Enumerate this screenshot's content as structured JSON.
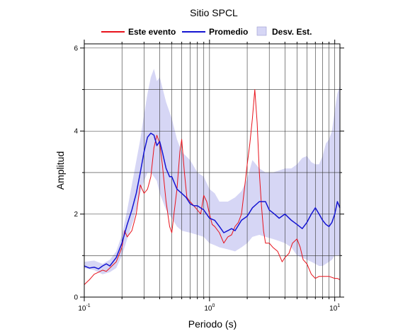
{
  "chart_data": {
    "type": "line",
    "title": "Sitio SPCL",
    "xlabel": "Periodo (s)",
    "ylabel": "Amplitud",
    "x_scale": "log",
    "xlim": [
      0.1,
      11
    ],
    "ylim": [
      0,
      6.1
    ],
    "grid": true,
    "legend_position": "top",
    "x_ticks": [
      {
        "value": 0.1,
        "base": "10",
        "exp": "-1"
      },
      {
        "value": 1,
        "base": "10",
        "exp": "0"
      },
      {
        "value": 10,
        "base": "10",
        "exp": "1"
      }
    ],
    "y_ticks": [
      "0",
      "2",
      "4",
      "6"
    ],
    "legend": [
      {
        "label": "Este evento",
        "color": "#e8121b",
        "kind": "line"
      },
      {
        "label": "Promedio",
        "color": "#1414d2",
        "kind": "line"
      },
      {
        "label": "Desv. Est.",
        "color": "#d6d6f5",
        "kind": "band"
      }
    ],
    "band": {
      "name": "Desv. Est.",
      "color": "#d6d6f5",
      "x": [
        0.1,
        0.12,
        0.14,
        0.16,
        0.18,
        0.2,
        0.22,
        0.25,
        0.28,
        0.3,
        0.32,
        0.34,
        0.36,
        0.38,
        0.4,
        0.45,
        0.5,
        0.55,
        0.6,
        0.7,
        0.8,
        0.9,
        1.0,
        1.1,
        1.2,
        1.4,
        1.6,
        1.8,
        2.0,
        2.2,
        2.5,
        2.8,
        3.2,
        3.6,
        4.0,
        4.5,
        5.0,
        5.5,
        6.0,
        6.5,
        7.0,
        7.5,
        8.0,
        8.5,
        9.0,
        9.5,
        10.0,
        10.5,
        11.0
      ],
      "upper": [
        0.85,
        0.88,
        0.8,
        0.9,
        1.1,
        1.5,
        2.1,
        3.0,
        3.8,
        4.4,
        4.9,
        5.3,
        5.5,
        5.2,
        5.3,
        4.7,
        4.3,
        3.8,
        3.5,
        3.3,
        3.0,
        2.9,
        2.6,
        2.5,
        2.3,
        2.3,
        2.4,
        2.55,
        2.85,
        3.3,
        3.1,
        3.0,
        3.0,
        3.05,
        3.1,
        3.1,
        3.2,
        3.35,
        3.4,
        3.25,
        3.2,
        3.2,
        3.4,
        3.7,
        3.8,
        4.0,
        4.5,
        4.9,
        5.1
      ],
      "lower": [
        0.7,
        0.65,
        0.55,
        0.6,
        0.7,
        1.0,
        1.4,
        1.9,
        2.5,
        2.8,
        3.0,
        3.0,
        2.9,
        2.8,
        2.5,
        2.1,
        1.9,
        1.7,
        1.6,
        1.55,
        1.5,
        1.45,
        1.3,
        1.25,
        1.2,
        1.15,
        1.1,
        1.2,
        1.3,
        1.45,
        1.5,
        1.45,
        1.4,
        1.35,
        1.3,
        1.2,
        1.0,
        0.95,
        0.9,
        0.85,
        0.8,
        0.75,
        0.75,
        0.8,
        0.85,
        0.9,
        1.0,
        1.0,
        1.0
      ]
    },
    "series": [
      {
        "name": "Este evento",
        "color": "#e8121b",
        "x": [
          0.1,
          0.11,
          0.12,
          0.13,
          0.14,
          0.15,
          0.16,
          0.18,
          0.2,
          0.21,
          0.22,
          0.24,
          0.26,
          0.28,
          0.3,
          0.32,
          0.34,
          0.36,
          0.38,
          0.4,
          0.42,
          0.45,
          0.48,
          0.5,
          0.52,
          0.55,
          0.58,
          0.6,
          0.63,
          0.66,
          0.7,
          0.75,
          0.8,
          0.85,
          0.9,
          0.95,
          1.0,
          1.05,
          1.1,
          1.2,
          1.3,
          1.4,
          1.5,
          1.6,
          1.7,
          1.8,
          1.9,
          2.0,
          2.1,
          2.2,
          2.3,
          2.4,
          2.5,
          2.6,
          2.7,
          2.8,
          3.0,
          3.2,
          3.5,
          3.8,
          4.0,
          4.3,
          4.6,
          5.0,
          5.3,
          5.6,
          6.0,
          6.5,
          7.0,
          7.5,
          8.0,
          9.0,
          10.0,
          10.5,
          11.0
        ],
        "y": [
          0.3,
          0.42,
          0.55,
          0.6,
          0.65,
          0.62,
          0.7,
          0.85,
          1.2,
          1.6,
          1.45,
          1.6,
          2.0,
          2.7,
          2.5,
          2.6,
          2.9,
          3.6,
          3.9,
          3.7,
          3.2,
          2.3,
          1.7,
          1.55,
          2.0,
          2.6,
          3.5,
          3.8,
          3.0,
          2.4,
          2.3,
          2.2,
          2.1,
          2.0,
          2.45,
          2.3,
          2.0,
          1.75,
          1.7,
          1.55,
          1.3,
          1.45,
          1.5,
          1.7,
          1.8,
          2.0,
          2.6,
          3.2,
          3.7,
          4.3,
          5.0,
          4.2,
          3.0,
          2.2,
          1.6,
          1.3,
          1.3,
          1.2,
          1.1,
          0.85,
          0.95,
          1.05,
          1.3,
          1.4,
          1.2,
          0.9,
          0.8,
          0.55,
          0.45,
          0.5,
          0.5,
          0.5,
          0.45,
          0.45,
          0.42
        ]
      },
      {
        "name": "Promedio",
        "color": "#1414d2",
        "x": [
          0.1,
          0.11,
          0.12,
          0.13,
          0.14,
          0.15,
          0.16,
          0.18,
          0.2,
          0.22,
          0.24,
          0.26,
          0.28,
          0.3,
          0.32,
          0.34,
          0.36,
          0.38,
          0.4,
          0.42,
          0.45,
          0.48,
          0.5,
          0.55,
          0.6,
          0.65,
          0.7,
          0.75,
          0.8,
          0.9,
          1.0,
          1.1,
          1.2,
          1.3,
          1.4,
          1.5,
          1.6,
          1.8,
          2.0,
          2.2,
          2.5,
          2.8,
          3.0,
          3.3,
          3.6,
          4.0,
          4.5,
          5.0,
          5.5,
          6.0,
          6.5,
          7.0,
          7.5,
          8.0,
          8.5,
          9.0,
          9.5,
          10.0,
          10.5,
          11.0
        ],
        "y": [
          0.75,
          0.7,
          0.72,
          0.68,
          0.75,
          0.8,
          0.75,
          0.95,
          1.3,
          1.75,
          2.1,
          2.5,
          3.0,
          3.5,
          3.85,
          3.95,
          3.9,
          3.65,
          3.75,
          3.5,
          3.1,
          2.9,
          2.9,
          2.6,
          2.5,
          2.4,
          2.25,
          2.2,
          2.2,
          2.1,
          1.9,
          1.85,
          1.7,
          1.55,
          1.6,
          1.65,
          1.6,
          1.85,
          1.95,
          2.15,
          2.3,
          2.3,
          2.1,
          2.0,
          1.9,
          2.0,
          1.85,
          1.75,
          1.65,
          1.8,
          2.0,
          2.15,
          2.0,
          1.85,
          1.75,
          1.7,
          1.8,
          2.0,
          2.3,
          2.15
        ]
      }
    ]
  }
}
